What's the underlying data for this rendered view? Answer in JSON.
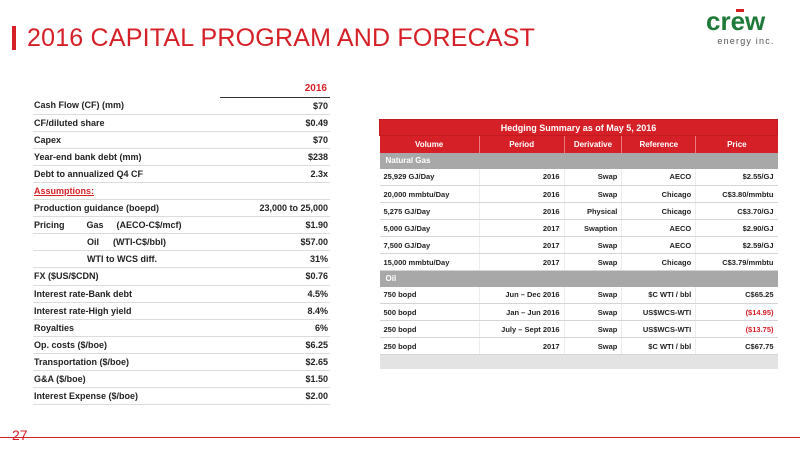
{
  "title": "2016 CAPITAL PROGRAM AND FORECAST",
  "logo": {
    "word": "crew",
    "sub": "energy inc."
  },
  "left_table": {
    "year_header": "2016",
    "rows": [
      {
        "label": "Cash Flow (CF) (mm)",
        "value": "$70"
      },
      {
        "label": "CF/diluted share",
        "value": "$0.49"
      },
      {
        "label": "Capex",
        "value": "$70"
      },
      {
        "label": "Year-end bank debt (mm)",
        "value": "$238"
      },
      {
        "label": "Debt to annualized Q4 CF",
        "value": "2.3x"
      }
    ],
    "assumptions_label": "Assumptions:",
    "production": {
      "label": "Production guidance (boepd)",
      "value": "23,000 to 25,000"
    },
    "pricing": {
      "label": "Pricing",
      "gas_label": "Gas",
      "gas_unit": "(AECO-C$/mcf)",
      "gas_value": "$1.90",
      "oil_label": "Oil",
      "oil_unit": "(WTI-C$/bbl)",
      "oil_value": "$57.00",
      "wcs_label": "WTI to WCS diff.",
      "wcs_value": "31%"
    },
    "rows2": [
      {
        "label": "FX ($US/$CDN)",
        "value": "$0.76"
      },
      {
        "label": "Interest rate-Bank debt",
        "value": "4.5%"
      },
      {
        "label": "Interest rate-High yield",
        "value": "8.4%"
      },
      {
        "label": "Royalties",
        "value": "6%"
      },
      {
        "label": "Op. costs ($/boe)",
        "value": "$6.25"
      },
      {
        "label": "Transportation ($/boe)",
        "value": "$2.65"
      },
      {
        "label": "G&A ($/boe)",
        "value": "$1.50"
      },
      {
        "label": "Interest Expense  ($/boe)",
        "value": "$2.00"
      }
    ]
  },
  "hedging": {
    "title": "Hedging Summary as of May 5, 2016",
    "columns": [
      "Volume",
      "Period",
      "Derivative",
      "Reference",
      "Price"
    ],
    "gas_section": "Natural Gas",
    "gas_rows": [
      {
        "volume": "25,929 GJ/Day",
        "period": "2016",
        "derivative": "Swap",
        "reference": "AECO",
        "price": "$2.55/GJ"
      },
      {
        "volume": "20,000 mmbtu/Day",
        "period": "2016",
        "derivative": "Swap",
        "reference": "Chicago",
        "price": "C$3.80/mmbtu"
      },
      {
        "volume": "5,275 GJ/Day",
        "period": "2016",
        "derivative": "Physical",
        "reference": "Chicago",
        "price": "C$3.70/GJ"
      },
      {
        "volume": "5,000 GJ/Day",
        "period": "2017",
        "derivative": "Swaption",
        "reference": "AECO",
        "price": "$2.90/GJ"
      },
      {
        "volume": "7,500 GJ/Day",
        "period": "2017",
        "derivative": "Swap",
        "reference": "AECO",
        "price": "$2.59/GJ"
      },
      {
        "volume": "15,000 mmbtu/Day",
        "period": "2017",
        "derivative": "Swap",
        "reference": "Chicago",
        "price": "C$3.79/mmbtu"
      }
    ],
    "oil_section": "Oil",
    "oil_rows": [
      {
        "volume": "750 bopd",
        "period": "Jun – Dec 2016",
        "derivative": "Swap",
        "reference": "$C WTI / bbl",
        "price": "C$65.25",
        "negative": false
      },
      {
        "volume": "500 bopd",
        "period": "Jan – Jun 2016",
        "derivative": "Swap",
        "reference": "US$WCS-WTI",
        "price": "($14.95)",
        "negative": true
      },
      {
        "volume": "250 bopd",
        "period": "July – Sept 2016",
        "derivative": "Swap",
        "reference": "US$WCS-WTI",
        "price": "($13.75)",
        "negative": true
      },
      {
        "volume": "250 bopd",
        "period": "2017",
        "derivative": "Swap",
        "reference": "$C WTI / bbl",
        "price": "C$67.75",
        "negative": false
      }
    ]
  },
  "page_number": "27",
  "colors": {
    "accent": "#d62027",
    "section_gray": "#a8a8a8"
  }
}
